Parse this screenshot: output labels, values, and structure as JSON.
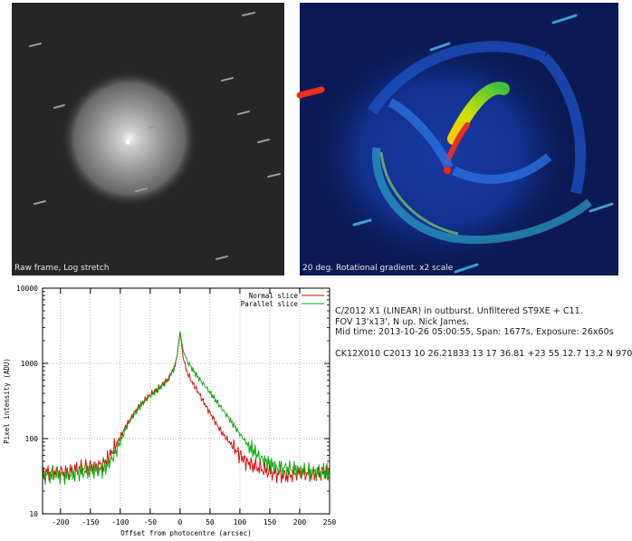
{
  "images": {
    "raw_caption": "Raw frame, Log stretch",
    "gradient_caption": "20 deg. Rotational gradient. x2 scale"
  },
  "info": {
    "line1": "C/2012 X1 (LINEAR) in outburst. Unfiltered ST9XE + C11.",
    "line2": "FOV 13'x13', N up. Nick James.",
    "line3": "Mid time: 2013-10-26 05:00:55, Span: 1677s, Exposure: 26x60s",
    "mpc": "CK12X010  C2013 10 26.21833 13 17 36.81 +23 55 12.7     13.2 N       970"
  },
  "colors": {
    "normal": "#dd0000",
    "parallel": "#00aa00"
  },
  "chart_data": {
    "type": "line",
    "xlabel": "Offset from photocentre (arcsec)",
    "ylabel": "Pixel intensity (ADU)",
    "xlim": [
      -230,
      250
    ],
    "ylim": [
      10,
      10000
    ],
    "yscale": "log",
    "grid": true,
    "legend_position": "top-right",
    "x_ticks": [
      "-200",
      "-150",
      "-100",
      "-50",
      "0",
      "50",
      "100",
      "150",
      "200",
      "250"
    ],
    "y_ticks": [
      "10",
      "100",
      "1000",
      "10000"
    ],
    "series": [
      {
        "name": "Normal slice",
        "color": "#dd0000",
        "points": [
          [
            -230,
            35
          ],
          [
            -210,
            36
          ],
          [
            -190,
            35
          ],
          [
            -170,
            40
          ],
          [
            -150,
            42
          ],
          [
            -130,
            45
          ],
          [
            -120,
            55
          ],
          [
            -110,
            75
          ],
          [
            -100,
            105
          ],
          [
            -90,
            150
          ],
          [
            -80,
            200
          ],
          [
            -70,
            260
          ],
          [
            -60,
            320
          ],
          [
            -50,
            380
          ],
          [
            -40,
            440
          ],
          [
            -30,
            520
          ],
          [
            -20,
            620
          ],
          [
            -15,
            720
          ],
          [
            -10,
            900
          ],
          [
            -5,
            1250
          ],
          [
            -2,
            2000
          ],
          [
            0,
            2600
          ],
          [
            2,
            2000
          ],
          [
            5,
            1200
          ],
          [
            10,
            820
          ],
          [
            20,
            560
          ],
          [
            30,
            420
          ],
          [
            40,
            300
          ],
          [
            50,
            220
          ],
          [
            60,
            160
          ],
          [
            70,
            120
          ],
          [
            80,
            95
          ],
          [
            90,
            75
          ],
          [
            100,
            60
          ],
          [
            110,
            50
          ],
          [
            120,
            45
          ],
          [
            140,
            38
          ],
          [
            160,
            34
          ],
          [
            180,
            32
          ],
          [
            200,
            35
          ],
          [
            220,
            33
          ],
          [
            240,
            36
          ],
          [
            250,
            35
          ]
        ]
      },
      {
        "name": "Parallel slice",
        "color": "#00aa00",
        "points": [
          [
            -230,
            32
          ],
          [
            -210,
            33
          ],
          [
            -190,
            32
          ],
          [
            -170,
            35
          ],
          [
            -150,
            37
          ],
          [
            -130,
            38
          ],
          [
            -120,
            45
          ],
          [
            -110,
            60
          ],
          [
            -100,
            90
          ],
          [
            -90,
            140
          ],
          [
            -80,
            190
          ],
          [
            -70,
            250
          ],
          [
            -60,
            310
          ],
          [
            -50,
            370
          ],
          [
            -40,
            430
          ],
          [
            -30,
            510
          ],
          [
            -20,
            600
          ],
          [
            -15,
            700
          ],
          [
            -10,
            880
          ],
          [
            -5,
            1250
          ],
          [
            -2,
            2000
          ],
          [
            0,
            2600
          ],
          [
            2,
            2100
          ],
          [
            5,
            1500
          ],
          [
            10,
            1150
          ],
          [
            20,
            850
          ],
          [
            30,
            650
          ],
          [
            40,
            520
          ],
          [
            50,
            410
          ],
          [
            60,
            320
          ],
          [
            70,
            250
          ],
          [
            80,
            195
          ],
          [
            90,
            150
          ],
          [
            100,
            115
          ],
          [
            110,
            90
          ],
          [
            120,
            72
          ],
          [
            130,
            60
          ],
          [
            140,
            52
          ],
          [
            150,
            46
          ],
          [
            160,
            42
          ],
          [
            180,
            40
          ],
          [
            200,
            38
          ],
          [
            220,
            36
          ],
          [
            240,
            36
          ],
          [
            250,
            35
          ]
        ]
      }
    ]
  }
}
